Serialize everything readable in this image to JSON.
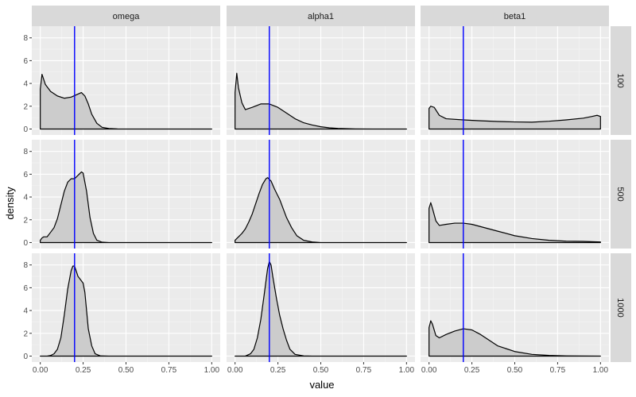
{
  "chart_data": {
    "type": "area",
    "subtype": "faceted density plot",
    "xlabel": "value",
    "ylabel": "density",
    "columns": [
      "omega",
      "alpha1",
      "beta1"
    ],
    "rows": [
      "100",
      "500",
      "1000"
    ],
    "xlim": [
      0,
      1
    ],
    "ylim": [
      0,
      8.5
    ],
    "x_ticks": [
      0,
      0.25,
      0.5,
      0.75,
      1
    ],
    "x_tick_labels": [
      "0.00",
      "0.25",
      "0.50",
      "0.75",
      "1.00"
    ],
    "y_ticks": [
      0,
      2,
      4,
      6,
      8
    ],
    "y_tick_labels": [
      "0",
      "2",
      "4",
      "6",
      "8"
    ],
    "reference_line": {
      "x": 0.2,
      "color": "#0000ff"
    },
    "fill_color": "#cccccc",
    "grid": true,
    "panels": [
      {
        "row": "100",
        "column": "omega",
        "points": [
          [
            0,
            3.5
          ],
          [
            0.01,
            4.8
          ],
          [
            0.03,
            3.9
          ],
          [
            0.06,
            3.3
          ],
          [
            0.1,
            2.9
          ],
          [
            0.14,
            2.7
          ],
          [
            0.18,
            2.8
          ],
          [
            0.21,
            3.0
          ],
          [
            0.24,
            3.2
          ],
          [
            0.26,
            2.9
          ],
          [
            0.28,
            2.2
          ],
          [
            0.3,
            1.3
          ],
          [
            0.33,
            0.5
          ],
          [
            0.36,
            0.15
          ],
          [
            0.4,
            0.04
          ],
          [
            0.45,
            0.01
          ],
          [
            0.5,
            0
          ],
          [
            1,
            0
          ]
        ]
      },
      {
        "row": "100",
        "column": "alpha1",
        "points": [
          [
            0,
            3.2
          ],
          [
            0.01,
            4.9
          ],
          [
            0.02,
            3.6
          ],
          [
            0.04,
            2.3
          ],
          [
            0.06,
            1.7
          ],
          [
            0.1,
            1.9
          ],
          [
            0.15,
            2.2
          ],
          [
            0.2,
            2.2
          ],
          [
            0.25,
            1.9
          ],
          [
            0.3,
            1.4
          ],
          [
            0.35,
            0.9
          ],
          [
            0.4,
            0.55
          ],
          [
            0.45,
            0.35
          ],
          [
            0.5,
            0.2
          ],
          [
            0.55,
            0.1
          ],
          [
            0.6,
            0.05
          ],
          [
            0.7,
            0.01
          ],
          [
            0.8,
            0
          ],
          [
            1,
            0
          ]
        ]
      },
      {
        "row": "100",
        "column": "beta1",
        "points": [
          [
            0,
            1.8
          ],
          [
            0.01,
            2.0
          ],
          [
            0.03,
            1.9
          ],
          [
            0.06,
            1.2
          ],
          [
            0.1,
            0.9
          ],
          [
            0.2,
            0.8
          ],
          [
            0.3,
            0.72
          ],
          [
            0.4,
            0.66
          ],
          [
            0.5,
            0.62
          ],
          [
            0.6,
            0.6
          ],
          [
            0.7,
            0.68
          ],
          [
            0.8,
            0.8
          ],
          [
            0.9,
            0.95
          ],
          [
            0.95,
            1.1
          ],
          [
            0.98,
            1.2
          ],
          [
            1,
            1.1
          ]
        ]
      },
      {
        "row": "500",
        "column": "omega",
        "points": [
          [
            0,
            0.2
          ],
          [
            0.01,
            0.4
          ],
          [
            0.02,
            0.5
          ],
          [
            0.04,
            0.5
          ],
          [
            0.06,
            0.9
          ],
          [
            0.08,
            1.3
          ],
          [
            0.1,
            2.1
          ],
          [
            0.12,
            3.3
          ],
          [
            0.14,
            4.5
          ],
          [
            0.16,
            5.3
          ],
          [
            0.18,
            5.6
          ],
          [
            0.2,
            5.6
          ],
          [
            0.22,
            5.9
          ],
          [
            0.24,
            6.2
          ],
          [
            0.25,
            6.1
          ],
          [
            0.27,
            4.5
          ],
          [
            0.29,
            2.2
          ],
          [
            0.31,
            0.8
          ],
          [
            0.33,
            0.2
          ],
          [
            0.36,
            0.03
          ],
          [
            0.4,
            0
          ],
          [
            1,
            0
          ]
        ]
      },
      {
        "row": "500",
        "column": "alpha1",
        "points": [
          [
            0,
            0.2
          ],
          [
            0.02,
            0.5
          ],
          [
            0.04,
            0.8
          ],
          [
            0.06,
            1.2
          ],
          [
            0.08,
            1.8
          ],
          [
            0.1,
            2.5
          ],
          [
            0.12,
            3.4
          ],
          [
            0.14,
            4.3
          ],
          [
            0.16,
            5.1
          ],
          [
            0.18,
            5.6
          ],
          [
            0.19,
            5.7
          ],
          [
            0.21,
            5.4
          ],
          [
            0.23,
            4.7
          ],
          [
            0.26,
            3.8
          ],
          [
            0.28,
            3.0
          ],
          [
            0.3,
            2.2
          ],
          [
            0.33,
            1.3
          ],
          [
            0.36,
            0.6
          ],
          [
            0.4,
            0.2
          ],
          [
            0.45,
            0.05
          ],
          [
            0.5,
            0
          ],
          [
            1,
            0
          ]
        ]
      },
      {
        "row": "500",
        "column": "beta1",
        "points": [
          [
            0,
            3.0
          ],
          [
            0.01,
            3.5
          ],
          [
            0.02,
            3.0
          ],
          [
            0.04,
            1.9
          ],
          [
            0.06,
            1.5
          ],
          [
            0.1,
            1.6
          ],
          [
            0.15,
            1.7
          ],
          [
            0.2,
            1.7
          ],
          [
            0.25,
            1.6
          ],
          [
            0.3,
            1.4
          ],
          [
            0.4,
            1.0
          ],
          [
            0.5,
            0.6
          ],
          [
            0.6,
            0.35
          ],
          [
            0.7,
            0.2
          ],
          [
            0.8,
            0.12
          ],
          [
            0.9,
            0.1
          ],
          [
            1,
            0.05
          ]
        ]
      },
      {
        "row": "1000",
        "column": "omega",
        "points": [
          [
            0,
            0
          ],
          [
            0.04,
            0
          ],
          [
            0.06,
            0.05
          ],
          [
            0.08,
            0.2
          ],
          [
            0.1,
            0.6
          ],
          [
            0.12,
            1.6
          ],
          [
            0.14,
            3.6
          ],
          [
            0.16,
            5.9
          ],
          [
            0.18,
            7.5
          ],
          [
            0.19,
            7.9
          ],
          [
            0.2,
            7.9
          ],
          [
            0.22,
            7.0
          ],
          [
            0.24,
            6.6
          ],
          [
            0.25,
            6.4
          ],
          [
            0.26,
            5.6
          ],
          [
            0.27,
            4.0
          ],
          [
            0.28,
            2.4
          ],
          [
            0.3,
            0.9
          ],
          [
            0.32,
            0.2
          ],
          [
            0.35,
            0.02
          ],
          [
            0.4,
            0
          ],
          [
            1,
            0
          ]
        ]
      },
      {
        "row": "1000",
        "column": "alpha1",
        "points": [
          [
            0,
            0
          ],
          [
            0.06,
            0
          ],
          [
            0.09,
            0.2
          ],
          [
            0.11,
            0.6
          ],
          [
            0.13,
            1.6
          ],
          [
            0.15,
            3.2
          ],
          [
            0.17,
            5.4
          ],
          [
            0.19,
            7.7
          ],
          [
            0.2,
            8.3
          ],
          [
            0.21,
            8.0
          ],
          [
            0.22,
            7.0
          ],
          [
            0.24,
            5.2
          ],
          [
            0.26,
            3.6
          ],
          [
            0.28,
            2.4
          ],
          [
            0.3,
            1.4
          ],
          [
            0.32,
            0.6
          ],
          [
            0.35,
            0.15
          ],
          [
            0.4,
            0.02
          ],
          [
            0.45,
            0
          ],
          [
            1,
            0
          ]
        ]
      },
      {
        "row": "1000",
        "column": "beta1",
        "points": [
          [
            0,
            2.5
          ],
          [
            0.01,
            3.1
          ],
          [
            0.02,
            2.8
          ],
          [
            0.04,
            1.8
          ],
          [
            0.06,
            1.6
          ],
          [
            0.1,
            1.9
          ],
          [
            0.15,
            2.2
          ],
          [
            0.2,
            2.4
          ],
          [
            0.25,
            2.3
          ],
          [
            0.3,
            1.9
          ],
          [
            0.35,
            1.4
          ],
          [
            0.4,
            0.9
          ],
          [
            0.5,
            0.4
          ],
          [
            0.6,
            0.15
          ],
          [
            0.7,
            0.06
          ],
          [
            0.8,
            0.02
          ],
          [
            0.9,
            0.01
          ],
          [
            1,
            0
          ]
        ]
      }
    ]
  }
}
